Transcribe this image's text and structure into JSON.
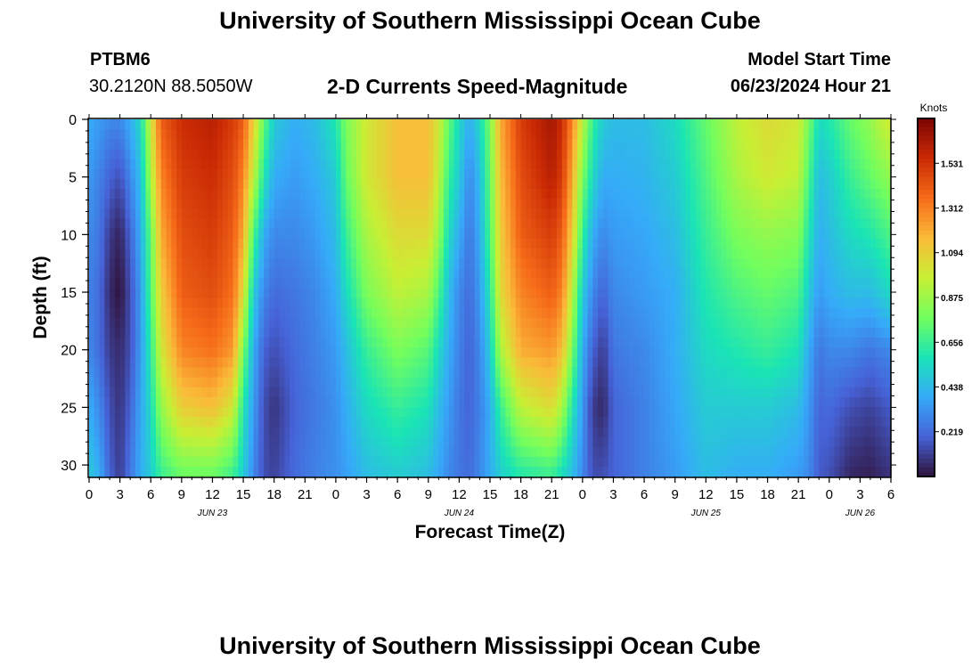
{
  "header": {
    "title": "University of Southern Mississippi Ocean Cube",
    "station": "PTBM6",
    "coordinates": "30.2120N  88.5050W",
    "subtitle": "2-D Currents Speed-Magnitude",
    "model_start_label": "Model Start Time",
    "model_start_value": "06/23/2024 Hour 21"
  },
  "footer": {
    "title": "University of Southern Mississippi Ocean Cube"
  },
  "colors": {
    "scale": [
      "#30123b",
      "#4662d7",
      "#36aaf9",
      "#1ae4b6",
      "#72fe5e",
      "#c8ef34",
      "#faba39",
      "#f66b19",
      "#ca2a04",
      "#7a0403"
    ]
  },
  "chart_data": {
    "type": "heatmap",
    "title": "2-D Currents Speed-Magnitude",
    "xlabel": "Forecast Time(Z)",
    "ylabel": "Depth (ft)",
    "x_unit": "hours since 06/23 00Z",
    "xlim": [
      0,
      78
    ],
    "ylim": [
      0,
      31
    ],
    "x_ticks": [
      0,
      3,
      6,
      9,
      12,
      15,
      18,
      21,
      24,
      27,
      30,
      33,
      36,
      39,
      42,
      45,
      48,
      51,
      54,
      57,
      60,
      63,
      66,
      69,
      72,
      75,
      78
    ],
    "x_tick_labels": [
      "0",
      "3",
      "6",
      "9",
      "12",
      "15",
      "18",
      "21",
      "0",
      "3",
      "6",
      "9",
      "12",
      "15",
      "18",
      "21",
      "0",
      "3",
      "6",
      "9",
      "12",
      "15",
      "18",
      "21",
      "0",
      "3",
      "6"
    ],
    "date_labels": [
      {
        "label": "JUN 23",
        "x": 12
      },
      {
        "label": "JUN 24",
        "x": 36
      },
      {
        "label": "JUN 25",
        "x": 60
      },
      {
        "label": "JUN 26",
        "x": 75
      }
    ],
    "y_ticks": [
      0,
      5,
      10,
      15,
      20,
      25,
      30
    ],
    "y_tick_labels": [
      "0",
      "5",
      "10",
      "15",
      "20",
      "25",
      "30"
    ],
    "colorbar": {
      "title": "Knots",
      "range": [
        0,
        1.75
      ],
      "ticks": [
        0.219,
        0.438,
        0.656,
        0.875,
        1.094,
        1.312,
        1.531
      ],
      "tick_labels": [
        "0.219",
        "0.438",
        "0.656",
        "0.875",
        "1.094",
        "1.312",
        "1.531"
      ]
    },
    "depth_levels": [
      0,
      5,
      10,
      15,
      20,
      25,
      31
    ],
    "columns": [
      {
        "x": 0,
        "speeds": [
          0.4,
          0.35,
          0.3,
          0.28,
          0.3,
          0.4,
          0.5
        ]
      },
      {
        "x": 1,
        "speeds": [
          0.35,
          0.28,
          0.25,
          0.22,
          0.22,
          0.3,
          0.4
        ]
      },
      {
        "x": 2,
        "speeds": [
          0.3,
          0.2,
          0.1,
          0.06,
          0.1,
          0.15,
          0.2
        ]
      },
      {
        "x": 3,
        "speeds": [
          0.3,
          0.15,
          0.04,
          0.0,
          0.06,
          0.08,
          0.1
        ]
      },
      {
        "x": 4,
        "speeds": [
          0.4,
          0.3,
          0.2,
          0.15,
          0.15,
          0.2,
          0.25
        ]
      },
      {
        "x": 5,
        "speeds": [
          0.55,
          0.45,
          0.4,
          0.35,
          0.35,
          0.38,
          0.4
        ]
      },
      {
        "x": 6,
        "speeds": [
          1.0,
          0.9,
          0.75,
          0.7,
          0.62,
          0.55,
          0.5
        ]
      },
      {
        "x": 7,
        "speeds": [
          1.4,
          1.3,
          1.2,
          1.1,
          1.0,
          0.85,
          0.65
        ]
      },
      {
        "x": 9,
        "speeds": [
          1.55,
          1.5,
          1.45,
          1.4,
          1.3,
          1.1,
          0.75
        ]
      },
      {
        "x": 12,
        "speeds": [
          1.6,
          1.55,
          1.5,
          1.45,
          1.35,
          1.15,
          0.75
        ]
      },
      {
        "x": 14,
        "speeds": [
          1.5,
          1.45,
          1.4,
          1.35,
          1.25,
          1.0,
          0.65
        ]
      },
      {
        "x": 15,
        "speeds": [
          1.4,
          1.3,
          1.2,
          1.05,
          0.8,
          0.6,
          0.5
        ]
      },
      {
        "x": 16,
        "speeds": [
          1.1,
          0.95,
          0.7,
          0.5,
          0.4,
          0.35,
          0.3
        ]
      },
      {
        "x": 17,
        "speeds": [
          0.75,
          0.6,
          0.4,
          0.3,
          0.2,
          0.15,
          0.15
        ]
      },
      {
        "x": 18,
        "speeds": [
          0.5,
          0.4,
          0.3,
          0.22,
          0.15,
          0.08,
          0.12
        ]
      },
      {
        "x": 20,
        "speeds": [
          0.4,
          0.35,
          0.3,
          0.25,
          0.22,
          0.2,
          0.22
        ]
      },
      {
        "x": 22,
        "speeds": [
          0.45,
          0.4,
          0.35,
          0.3,
          0.28,
          0.26,
          0.28
        ]
      },
      {
        "x": 24,
        "speeds": [
          0.6,
          0.5,
          0.45,
          0.4,
          0.35,
          0.32,
          0.32
        ]
      },
      {
        "x": 25,
        "speeds": [
          0.8,
          0.75,
          0.65,
          0.55,
          0.45,
          0.4,
          0.36
        ]
      },
      {
        "x": 27,
        "speeds": [
          1.0,
          1.0,
          0.9,
          0.8,
          0.65,
          0.55,
          0.45
        ]
      },
      {
        "x": 30,
        "speeds": [
          1.15,
          1.15,
          1.05,
          0.95,
          0.8,
          0.65,
          0.5
        ]
      },
      {
        "x": 33,
        "speeds": [
          1.15,
          1.15,
          1.05,
          0.9,
          0.72,
          0.58,
          0.45
        ]
      },
      {
        "x": 34,
        "speeds": [
          1.0,
          0.95,
          0.85,
          0.7,
          0.55,
          0.45,
          0.38
        ]
      },
      {
        "x": 35,
        "speeds": [
          0.75,
          0.65,
          0.55,
          0.45,
          0.4,
          0.35,
          0.3
        ]
      },
      {
        "x": 36,
        "speeds": [
          0.55,
          0.5,
          0.4,
          0.3,
          0.28,
          0.25,
          0.25
        ]
      },
      {
        "x": 37,
        "speeds": [
          0.4,
          0.3,
          0.25,
          0.22,
          0.2,
          0.2,
          0.22
        ]
      },
      {
        "x": 38,
        "speeds": [
          0.55,
          0.45,
          0.4,
          0.35,
          0.3,
          0.28,
          0.3
        ]
      },
      {
        "x": 39,
        "speeds": [
          0.8,
          0.75,
          0.7,
          0.6,
          0.5,
          0.4,
          0.4
        ]
      },
      {
        "x": 40,
        "speeds": [
          1.2,
          1.15,
          1.1,
          1.05,
          0.9,
          0.65,
          0.5
        ]
      },
      {
        "x": 42,
        "speeds": [
          1.5,
          1.45,
          1.4,
          1.3,
          1.2,
          0.95,
          0.6
        ]
      },
      {
        "x": 45,
        "speeds": [
          1.65,
          1.6,
          1.5,
          1.4,
          1.25,
          1.05,
          0.65
        ]
      },
      {
        "x": 46,
        "speeds": [
          1.55,
          1.5,
          1.4,
          1.3,
          1.15,
          0.9,
          0.55
        ]
      },
      {
        "x": 47,
        "speeds": [
          1.3,
          1.2,
          1.1,
          0.95,
          0.8,
          0.6,
          0.45
        ]
      },
      {
        "x": 48,
        "speeds": [
          0.95,
          0.8,
          0.65,
          0.5,
          0.4,
          0.35,
          0.3
        ]
      },
      {
        "x": 49,
        "speeds": [
          0.65,
          0.55,
          0.4,
          0.3,
          0.2,
          0.1,
          0.15
        ]
      },
      {
        "x": 50,
        "speeds": [
          0.5,
          0.4,
          0.3,
          0.2,
          0.1,
          0.05,
          0.15
        ]
      },
      {
        "x": 51,
        "speeds": [
          0.45,
          0.4,
          0.35,
          0.3,
          0.25,
          0.2,
          0.2
        ]
      },
      {
        "x": 54,
        "speeds": [
          0.45,
          0.42,
          0.38,
          0.35,
          0.3,
          0.28,
          0.28
        ]
      },
      {
        "x": 57,
        "speeds": [
          0.55,
          0.5,
          0.45,
          0.4,
          0.4,
          0.38,
          0.35
        ]
      },
      {
        "x": 60,
        "speeds": [
          0.75,
          0.7,
          0.65,
          0.6,
          0.55,
          0.5,
          0.45
        ]
      },
      {
        "x": 63,
        "speeds": [
          0.95,
          0.9,
          0.8,
          0.7,
          0.6,
          0.5,
          0.4
        ]
      },
      {
        "x": 66,
        "speeds": [
          1.05,
          1.0,
          0.85,
          0.75,
          0.65,
          0.5,
          0.4
        ]
      },
      {
        "x": 69,
        "speeds": [
          1.0,
          0.95,
          0.82,
          0.7,
          0.58,
          0.45,
          0.35
        ]
      },
      {
        "x": 70,
        "speeds": [
          0.8,
          0.7,
          0.6,
          0.5,
          0.4,
          0.35,
          0.3
        ]
      },
      {
        "x": 71,
        "speeds": [
          0.55,
          0.45,
          0.4,
          0.35,
          0.25,
          0.2,
          0.18
        ]
      },
      {
        "x": 72,
        "speeds": [
          0.6,
          0.5,
          0.45,
          0.4,
          0.3,
          0.22,
          0.15
        ]
      },
      {
        "x": 74,
        "speeds": [
          0.75,
          0.65,
          0.55,
          0.45,
          0.3,
          0.15,
          0.05
        ]
      },
      {
        "x": 76,
        "speeds": [
          0.85,
          0.75,
          0.6,
          0.45,
          0.25,
          0.12,
          0.03
        ]
      },
      {
        "x": 77,
        "speeds": [
          0.95,
          0.8,
          0.65,
          0.5,
          0.28,
          0.15,
          0.06
        ]
      },
      {
        "x": 78,
        "speeds": [
          1.0,
          0.85,
          0.7,
          0.55,
          0.3,
          0.18,
          0.08
        ]
      }
    ]
  }
}
